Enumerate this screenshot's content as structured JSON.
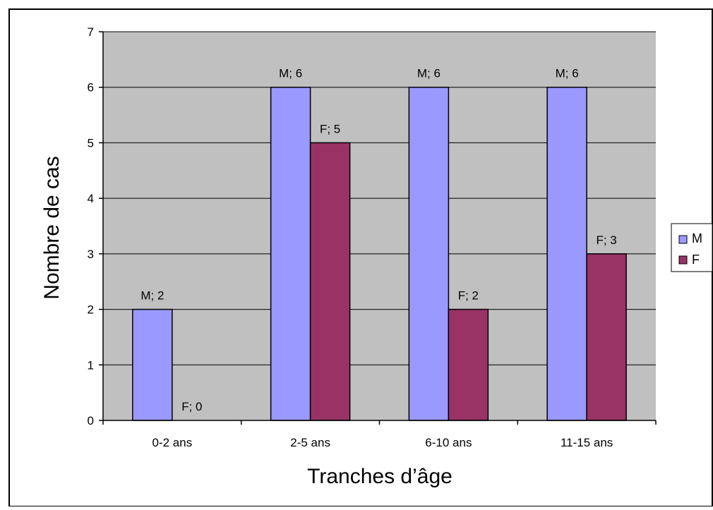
{
  "chart_data": {
    "type": "bar",
    "title": "",
    "xlabel": "Tranches d’âge",
    "ylabel": "Nombre de cas",
    "categories": [
      "0-2 ans",
      "2-5 ans",
      "6-10 ans",
      "11-15 ans"
    ],
    "series": [
      {
        "name": "M",
        "values": [
          2,
          6,
          6,
          6
        ],
        "color": "#9999ff",
        "labels": [
          "M; 2",
          "M; 6",
          "M; 6",
          "M; 6"
        ]
      },
      {
        "name": "F",
        "values": [
          0,
          5,
          2,
          3
        ],
        "color": "#993366",
        "labels": [
          "F; 0",
          "F; 5",
          "F; 2",
          "F; 3"
        ]
      }
    ],
    "ylim": [
      0,
      7
    ],
    "yticks": [
      "0",
      "1",
      "2",
      "3",
      "4",
      "5",
      "6",
      "7"
    ],
    "grid": true,
    "plot_background": "#c0c0c0",
    "legend_position": "right"
  }
}
